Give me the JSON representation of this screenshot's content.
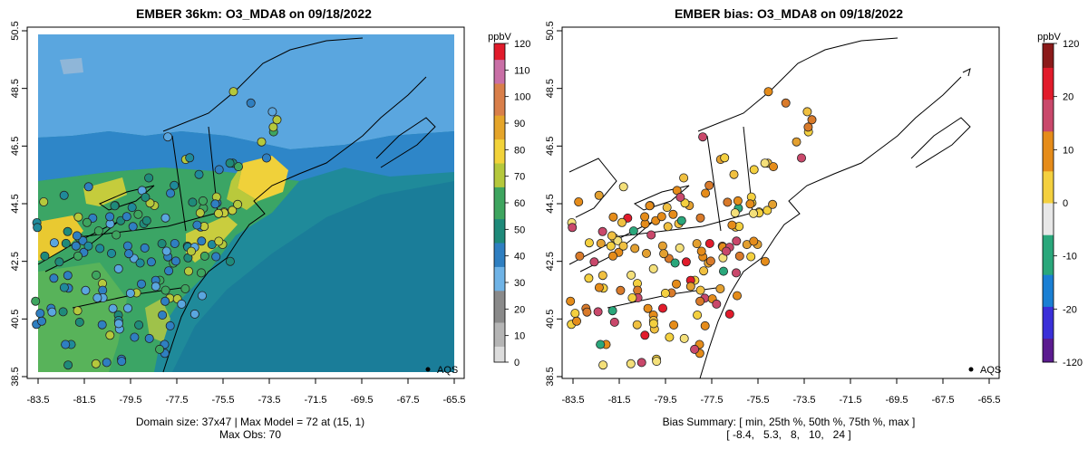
{
  "panels": {
    "left": {
      "title": "EMBER 36km: O3_MDA8 on 09/18/2022",
      "colorbar_unit": "ppbV",
      "colorbar_ticks": [
        "0",
        "10",
        "20",
        "30",
        "40",
        "50",
        "60",
        "70",
        "80",
        "90",
        "100",
        "110",
        "120"
      ],
      "legend_label": "AQS",
      "caption_line1": "Domain size: 37x47 | Max Model = 72 at (15, 1)",
      "caption_line2": "Max Obs: 70"
    },
    "right": {
      "title": "EMBER bias: O3_MDA8 on 09/18/2022",
      "colorbar_unit": "ppbV",
      "colorbar_ticks": [
        "-120",
        "-20",
        "-10",
        "0",
        "10",
        "20",
        "120"
      ],
      "legend_label": "AQS",
      "caption_line1": "Bias Summary: [ min, 25th %, 50th %, 75th %, max ]",
      "caption_line2": "[ -8.4,   5.3,   8,   10,   24 ]"
    }
  },
  "axes": {
    "x_ticks": [
      "-83.5",
      "-81.5",
      "-79.5",
      "-77.5",
      "-75.5",
      "-73.5",
      "-71.5",
      "-69.5",
      "-67.5",
      "-65.5"
    ],
    "y_ticks": [
      "38.5",
      "40.5",
      "42.5",
      "44.5",
      "46.5",
      "48.5",
      "50.5"
    ],
    "lon_range": [
      -84.2,
      -65.0
    ],
    "lat_range": [
      38.3,
      50.6
    ]
  },
  "chart_data": {
    "type": "map",
    "variable": "O3_MDA8",
    "date": "09/18/2022",
    "model": "EMBER 36km",
    "model_color_scale": {
      "unit": "ppbV",
      "range": [
        0,
        120
      ]
    },
    "bias_color_scale": {
      "unit": "ppbV",
      "range": [
        -120,
        120
      ]
    },
    "domain_size": "37x47",
    "max_model": 72,
    "max_model_location": [
      15,
      1
    ],
    "max_obs": 70,
    "bias_summary": {
      "min": -8.4,
      "p25": 5.3,
      "p50": 8,
      "p75": 10,
      "max": 24
    }
  },
  "colors": {
    "model_ramp": [
      "#dcdcdc",
      "#b5b5b5",
      "#8a8a8a",
      "#6fb3e6",
      "#2f7fc1",
      "#1f8a7a",
      "#3ea55f",
      "#b5c83c",
      "#f2d33a",
      "#e5a52a",
      "#d97f4a",
      "#c96fa6",
      "#e11b2b"
    ],
    "bias_ramp": [
      "#5b1b8f",
      "#3a2fd8",
      "#1a7fd3",
      "#2aa77b",
      "#e8e8e8",
      "#f4d03f",
      "#e58c1a",
      "#c9486b",
      "#e11b2b",
      "#8b1a1a"
    ]
  }
}
